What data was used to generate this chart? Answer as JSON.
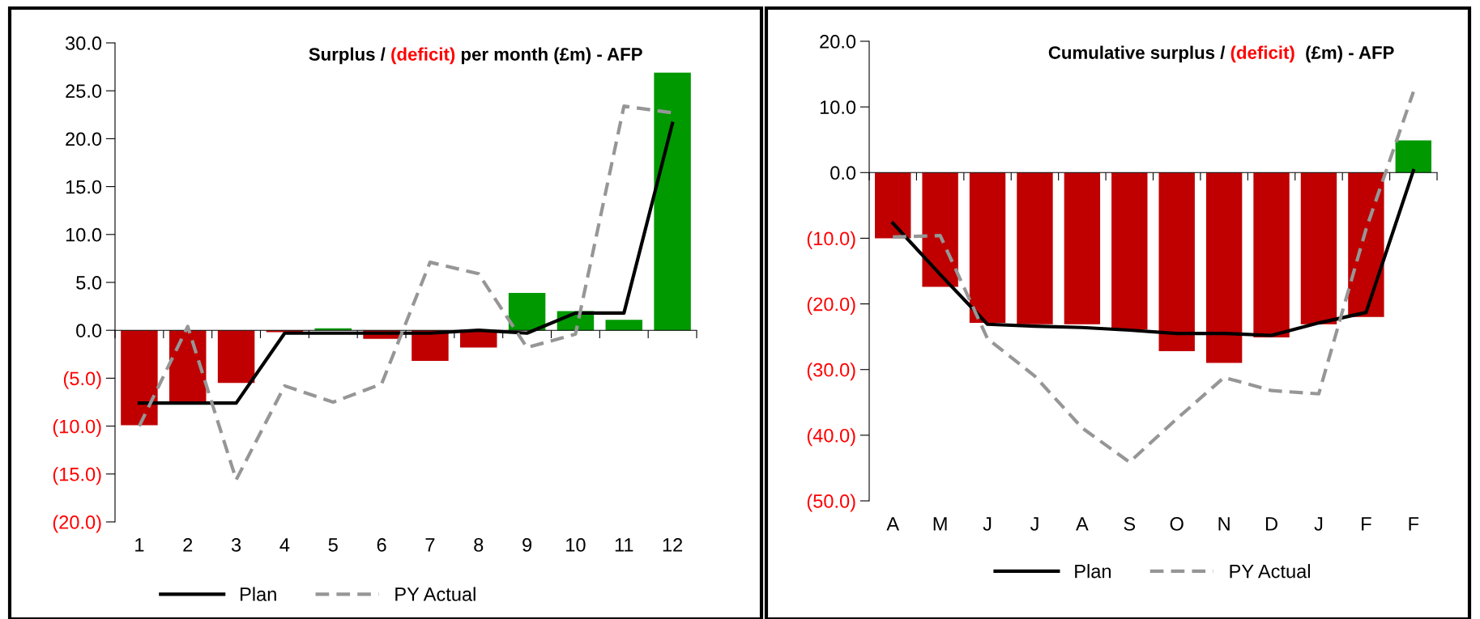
{
  "chart_data": [
    {
      "type": "bar",
      "title": "Surplus / (deficit) per month (£m) - AFP",
      "categories": [
        "1",
        "2",
        "3",
        "4",
        "5",
        "6",
        "7",
        "8",
        "9",
        "10",
        "11",
        "12"
      ],
      "series": [
        {
          "colors": [
            "#c00000",
            "#c00000",
            "#c00000",
            "#c00000",
            "#009900",
            "#c00000",
            "#c00000",
            "#c00000",
            "#009900",
            "#009900",
            "#009900",
            "#009900"
          ],
          "values": [
            -9.9,
            -7.5,
            -5.5,
            -0.2,
            0.2,
            -0.9,
            -3.2,
            -1.8,
            3.9,
            2.0,
            1.1,
            26.9
          ]
        },
        {
          "type": "line",
          "name": "Plan",
          "color": "#000000",
          "line_style": "solid",
          "values": [
            -7.6,
            -7.6,
            -7.6,
            -0.3,
            -0.3,
            -0.3,
            -0.3,
            0.0,
            -0.3,
            1.8,
            1.8,
            21.6
          ]
        },
        {
          "type": "line",
          "name": "PY Actual",
          "color": "#969696",
          "line_style": "dashed",
          "values": [
            -10.0,
            0.4,
            -15.6,
            -5.8,
            -7.5,
            -5.6,
            7.1,
            5.9,
            -1.8,
            -0.4,
            23.4,
            22.7
          ]
        }
      ],
      "ylim": [
        -20,
        30
      ],
      "yticks": [
        {
          "value": -20,
          "label": "(20.0)"
        },
        {
          "value": -15,
          "label": "(15.0)"
        },
        {
          "value": -10,
          "label": "(10.0)"
        },
        {
          "value": -5,
          "label": "(5.0)"
        },
        {
          "value": 0,
          "label": "0.0"
        },
        {
          "value": 5,
          "label": "5.0"
        },
        {
          "value": 10,
          "label": "10.0"
        },
        {
          "value": 15,
          "label": "15.0"
        },
        {
          "value": 20,
          "label": "20.0"
        },
        {
          "value": 25,
          "label": "25.0"
        },
        {
          "value": 30,
          "label": "30.0"
        }
      ],
      "legend": "bottom"
    },
    {
      "type": "bar",
      "title": "Cumulative surplus / (deficit)  (£m) - AFP",
      "categories": [
        "A",
        "M",
        "J",
        "J",
        "A",
        "S",
        "O",
        "N",
        "D",
        "J",
        "F",
        "F"
      ],
      "series": [
        {
          "colors": [
            "#c00000",
            "#c00000",
            "#c00000",
            "#c00000",
            "#c00000",
            "#c00000",
            "#c00000",
            "#c00000",
            "#c00000",
            "#c00000",
            "#c00000",
            "#009900"
          ],
          "values": [
            -10.0,
            -17.4,
            -22.9,
            -23.1,
            -23.1,
            -23.9,
            -27.2,
            -29.0,
            -25.1,
            -23.1,
            -22.0,
            4.9
          ]
        },
        {
          "type": "line",
          "name": "Plan",
          "color": "#000000",
          "line_style": "solid",
          "values": [
            -7.7,
            -15.5,
            -23.1,
            -23.4,
            -23.6,
            -24.0,
            -24.5,
            -24.5,
            -24.8,
            -22.9,
            -21.3,
            0.3
          ]
        },
        {
          "type": "line",
          "name": "PY Actual",
          "color": "#969696",
          "line_style": "dashed",
          "values": [
            -9.8,
            -9.6,
            -25.3,
            -31.0,
            -38.9,
            -44.1,
            -37.5,
            -31.2,
            -33.2,
            -33.7,
            -8.6,
            12.3
          ]
        }
      ],
      "ylim": [
        -50,
        20
      ],
      "yticks": [
        {
          "value": -50,
          "label": "(50.0)"
        },
        {
          "value": -40,
          "label": "(40.0)"
        },
        {
          "value": -30,
          "label": "(30.0)"
        },
        {
          "value": -20,
          "label": "(20.0)"
        },
        {
          "value": -10,
          "label": "(10.0)"
        },
        {
          "value": 0,
          "label": "0.0"
        },
        {
          "value": 10,
          "label": "10.0"
        },
        {
          "value": 20,
          "label": "20.0"
        }
      ],
      "legend": "bottom"
    }
  ]
}
